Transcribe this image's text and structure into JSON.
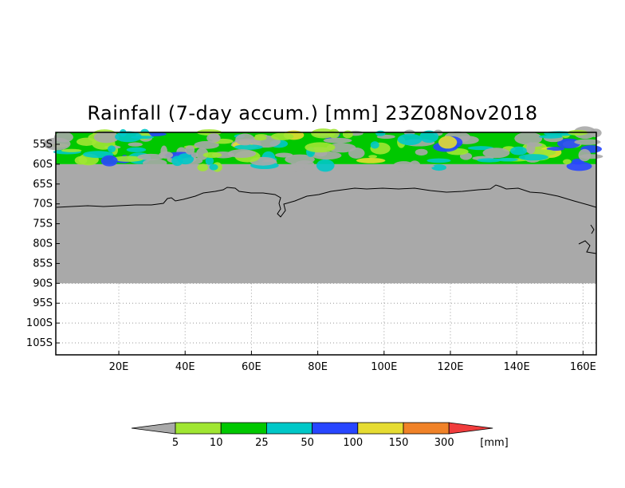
{
  "title": "Rainfall (7-day accum.) [mm] 23Z08Nov2018",
  "lat_labels": [
    "55S",
    "60S",
    "65S",
    "70S",
    "75S",
    "80S",
    "85S",
    "90S",
    "95S",
    "100S",
    "105S"
  ],
  "lon_labels": [
    "20E",
    "40E",
    "60E",
    "80E",
    "100E",
    "120E",
    "140E",
    "160E"
  ],
  "lat_values": [
    -55,
    -60,
    -65,
    -70,
    -75,
    -80,
    -85,
    -90,
    -95,
    -100,
    -105
  ],
  "lon_values": [
    20,
    40,
    60,
    80,
    100,
    120,
    140,
    160
  ],
  "map_extent": {
    "lon_min": 1,
    "lon_max": 164,
    "lat_max": -52,
    "lat_min": -108
  },
  "no_data_lat_max": -60,
  "data_lat_min": -90,
  "colorbar": {
    "labels": [
      "5",
      "10",
      "25",
      "50",
      "100",
      "150",
      "300"
    ],
    "unit": "[mm]",
    "under_color": "#a9a9a9",
    "colors": [
      "#a0e632",
      "#00c800",
      "#00c8c8",
      "#2846ff",
      "#e6dc32",
      "#f08228",
      "#f03c3c"
    ]
  },
  "colors": {
    "no_data": "#a9a9a9",
    "coastline": "#000000",
    "grid": "#999999"
  }
}
